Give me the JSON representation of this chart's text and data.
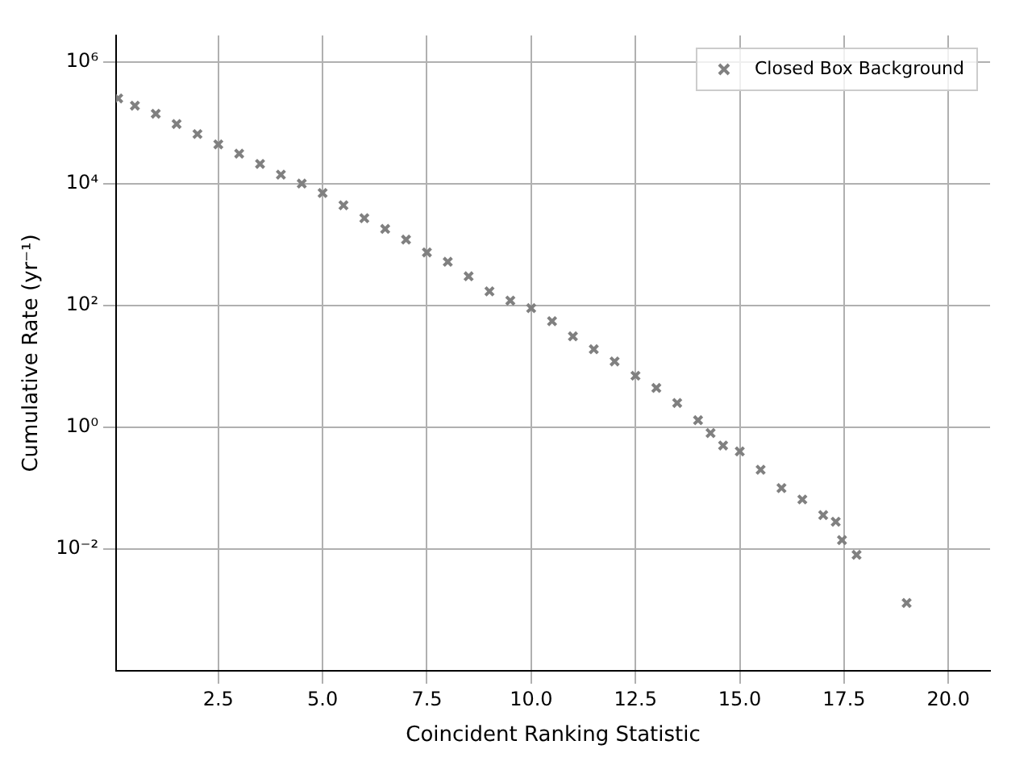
{
  "chart_data": {
    "type": "scatter",
    "xlabel": "Coincident Ranking Statistic",
    "ylabel": "Cumulative Rate (yr⁻¹)",
    "xlim": [
      0.05,
      21.0
    ],
    "xticks": [
      2.5,
      {
        "value": 5,
        "label": "5.0"
      },
      {
        "value": 7.5,
        "label": "7.5"
      },
      {
        "value": 10,
        "label": "10.0"
      },
      {
        "value": 12.5,
        "label": "12.5"
      },
      {
        "value": 15,
        "label": "15.0"
      },
      {
        "value": 17.5,
        "label": "17.5"
      },
      {
        "value": 20,
        "label": "20.0"
      }
    ],
    "ylim": [
      0.0001,
      2700000
    ],
    "yticks": [
      {
        "value": 0.01,
        "label": "10⁻²"
      },
      {
        "value": 1,
        "label": "10⁰"
      },
      {
        "value": 100,
        "label": "10²"
      },
      {
        "value": 10000,
        "label": "10⁴"
      },
      {
        "value": 1000000,
        "label": "10⁶"
      }
    ],
    "log": "y",
    "grid": true,
    "legend": "top right",
    "marker": "cross",
    "series": [
      {
        "name": "Closed Box Background",
        "color": "#808080",
        "x": [
          0.1,
          0.5,
          1,
          1.5,
          2,
          2.5,
          3,
          3.5,
          4,
          4.5,
          5,
          5.5,
          6,
          6.5,
          7,
          7.5,
          8,
          8.5,
          9,
          9.5,
          10,
          10.5,
          11,
          11.5,
          12,
          12.5,
          13,
          13.5,
          14,
          14.3,
          14.6,
          15,
          15.5,
          16,
          16.5,
          17,
          17.3,
          17.45,
          17.8,
          19
        ],
        "values": [
          250000,
          190000,
          140000,
          95000,
          65000,
          44000,
          31000,
          21000,
          14000,
          10000,
          7000,
          4400,
          2700,
          1800,
          1200,
          740,
          520,
          300,
          170,
          120,
          90,
          55,
          31,
          19,
          12,
          7,
          4.4,
          2.5,
          1.3,
          0.8,
          0.5,
          0.4,
          0.2,
          0.1,
          0.065,
          0.036,
          0.028,
          0.014,
          0.008,
          0.0013
        ]
      }
    ]
  }
}
